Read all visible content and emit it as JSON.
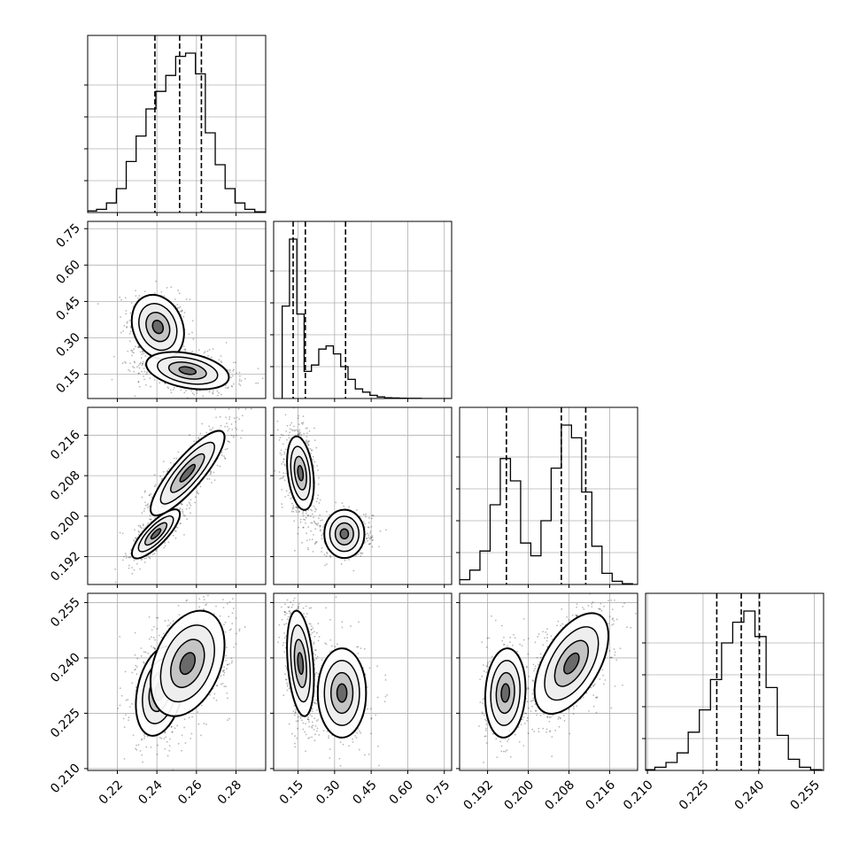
{
  "chart_data": {
    "type": "corner",
    "grid": true,
    "histogram_quantile_lines": "dashed",
    "colors": {
      "marks": "#000000",
      "grid": "#b0b0b0",
      "background": "#ffffff"
    },
    "parameters": [
      {
        "range": [
          0.205,
          0.295
        ],
        "ticks": [
          0.22,
          0.24,
          0.26,
          0.28
        ],
        "tick_labels": [
          "0.22",
          "0.24",
          "0.26",
          "0.28"
        ],
        "quantiles": [
          0.239,
          0.2515,
          0.2625
        ],
        "hist": {
          "bins": [
            0.207,
            0.212,
            0.217,
            0.222,
            0.227,
            0.232,
            0.237,
            0.242,
            0.247,
            0.252,
            0.257,
            0.262,
            0.267,
            0.272,
            0.277,
            0.282,
            0.287,
            0.292
          ],
          "counts": [
            0.01,
            0.02,
            0.06,
            0.15,
            0.32,
            0.48,
            0.65,
            0.76,
            0.86,
            0.98,
            1.0,
            0.87,
            0.5,
            0.3,
            0.15,
            0.06,
            0.02,
            0.005
          ]
        }
      },
      {
        "range": [
          0.05,
          0.78
        ],
        "ticks": [
          0.15,
          0.3,
          0.45,
          0.6,
          0.75
        ],
        "tick_labels": [
          "0.15",
          "0.30",
          "0.45",
          "0.60",
          "0.75"
        ],
        "quantiles": [
          0.13,
          0.18,
          0.345
        ],
        "hist": {
          "bins": [
            0.1,
            0.13,
            0.16,
            0.19,
            0.22,
            0.25,
            0.28,
            0.31,
            0.34,
            0.37,
            0.4,
            0.43,
            0.46,
            0.49,
            0.52,
            0.55,
            0.58,
            0.61,
            0.64,
            0.67,
            0.7,
            0.73,
            0.76
          ],
          "counts": [
            0.58,
            1.0,
            0.53,
            0.17,
            0.21,
            0.31,
            0.33,
            0.28,
            0.2,
            0.12,
            0.06,
            0.04,
            0.02,
            0.01,
            0.005,
            0.003,
            0.002,
            0.001,
            0.001,
            0.0,
            0.0,
            0.0,
            0.0
          ]
        }
      },
      {
        "range": [
          0.1865,
          0.2215
        ],
        "ticks": [
          0.192,
          0.2,
          0.208,
          0.216
        ],
        "tick_labels": [
          "0.192",
          "0.200",
          "0.208",
          "0.216"
        ],
        "quantiles": [
          0.1957,
          0.2065,
          0.2113
        ],
        "hist": {
          "bins": [
            0.1875,
            0.1895,
            0.1915,
            0.1935,
            0.1955,
            0.1975,
            0.1995,
            0.2015,
            0.2035,
            0.2055,
            0.2075,
            0.2095,
            0.2115,
            0.2135,
            0.2155,
            0.2175,
            0.2195,
            0.2215
          ],
          "counts": [
            0.03,
            0.09,
            0.21,
            0.5,
            0.79,
            0.65,
            0.26,
            0.18,
            0.4,
            0.73,
            1.0,
            0.92,
            0.58,
            0.24,
            0.07,
            0.02,
            0.005,
            0.0
          ]
        }
      },
      {
        "range": [
          0.2095,
          0.2575
        ],
        "ticks": [
          0.21,
          0.225,
          0.24,
          0.255
        ],
        "tick_labels": [
          "0.210",
          "0.225",
          "0.240",
          "0.255"
        ],
        "quantiles": [
          0.2287,
          0.2353,
          0.2402
        ],
        "hist": {
          "bins": [
            0.2105,
            0.2135,
            0.2165,
            0.2195,
            0.2225,
            0.2255,
            0.2285,
            0.2315,
            0.2345,
            0.2375,
            0.2405,
            0.2435,
            0.2465,
            0.2495,
            0.2525,
            0.2555
          ],
          "counts": [
            0.005,
            0.02,
            0.05,
            0.11,
            0.24,
            0.38,
            0.57,
            0.8,
            0.93,
            1.0,
            0.84,
            0.52,
            0.22,
            0.07,
            0.02,
            0.005
          ]
        }
      }
    ],
    "pairs": [
      {
        "x": 0,
        "y": 1,
        "modes": [
          {
            "center": [
              0.2405,
              0.345
            ],
            "sd": [
              0.006,
              0.06
            ],
            "rho": -0.2,
            "weight": 0.35
          },
          {
            "center": [
              0.2555,
              0.165
            ],
            "sd": [
              0.0095,
              0.035
            ],
            "rho": -0.35,
            "weight": 0.65
          }
        ]
      },
      {
        "x": 0,
        "y": 2,
        "modes": [
          {
            "center": [
              0.2395,
              0.1965
            ],
            "sd": [
              0.0055,
              0.0022
            ],
            "rho": 0.8,
            "weight": 0.35
          },
          {
            "center": [
              0.2555,
              0.2085
            ],
            "sd": [
              0.0085,
              0.0038
            ],
            "rho": 0.85,
            "weight": 0.65
          }
        ]
      },
      {
        "x": 0,
        "y": 3,
        "modes": [
          {
            "center": [
              0.2415,
              0.231
            ],
            "sd": [
              0.0055,
              0.0055
            ],
            "rho": 0.3,
            "weight": 0.35
          },
          {
            "center": [
              0.2555,
              0.2385
            ],
            "sd": [
              0.0085,
              0.0065
            ],
            "rho": 0.35,
            "weight": 0.65
          }
        ]
      },
      {
        "x": 1,
        "y": 2,
        "modes": [
          {
            "center": [
              0.16,
              0.2085
            ],
            "sd": [
              0.025,
              0.0033
            ],
            "rho": -0.3,
            "weight": 0.65
          },
          {
            "center": [
              0.34,
              0.1965
            ],
            "sd": [
              0.045,
              0.0018
            ],
            "rho": 0.0,
            "weight": 0.35
          }
        ]
      },
      {
        "x": 1,
        "y": 3,
        "modes": [
          {
            "center": [
              0.16,
              0.2385
            ],
            "sd": [
              0.025,
              0.0065
            ],
            "rho": -0.3,
            "weight": 0.65
          },
          {
            "center": [
              0.33,
              0.2305
            ],
            "sd": [
              0.045,
              0.0055
            ],
            "rho": 0.0,
            "weight": 0.35
          }
        ]
      },
      {
        "x": 2,
        "y": 3,
        "modes": [
          {
            "center": [
              0.1955,
              0.2305
            ],
            "sd": [
              0.0018,
              0.0055
            ],
            "rho": 0.1,
            "weight": 0.35
          },
          {
            "center": [
              0.2085,
              0.2385
            ],
            "sd": [
              0.0033,
              0.0062
            ],
            "rho": 0.55,
            "weight": 0.65
          }
        ]
      }
    ]
  }
}
